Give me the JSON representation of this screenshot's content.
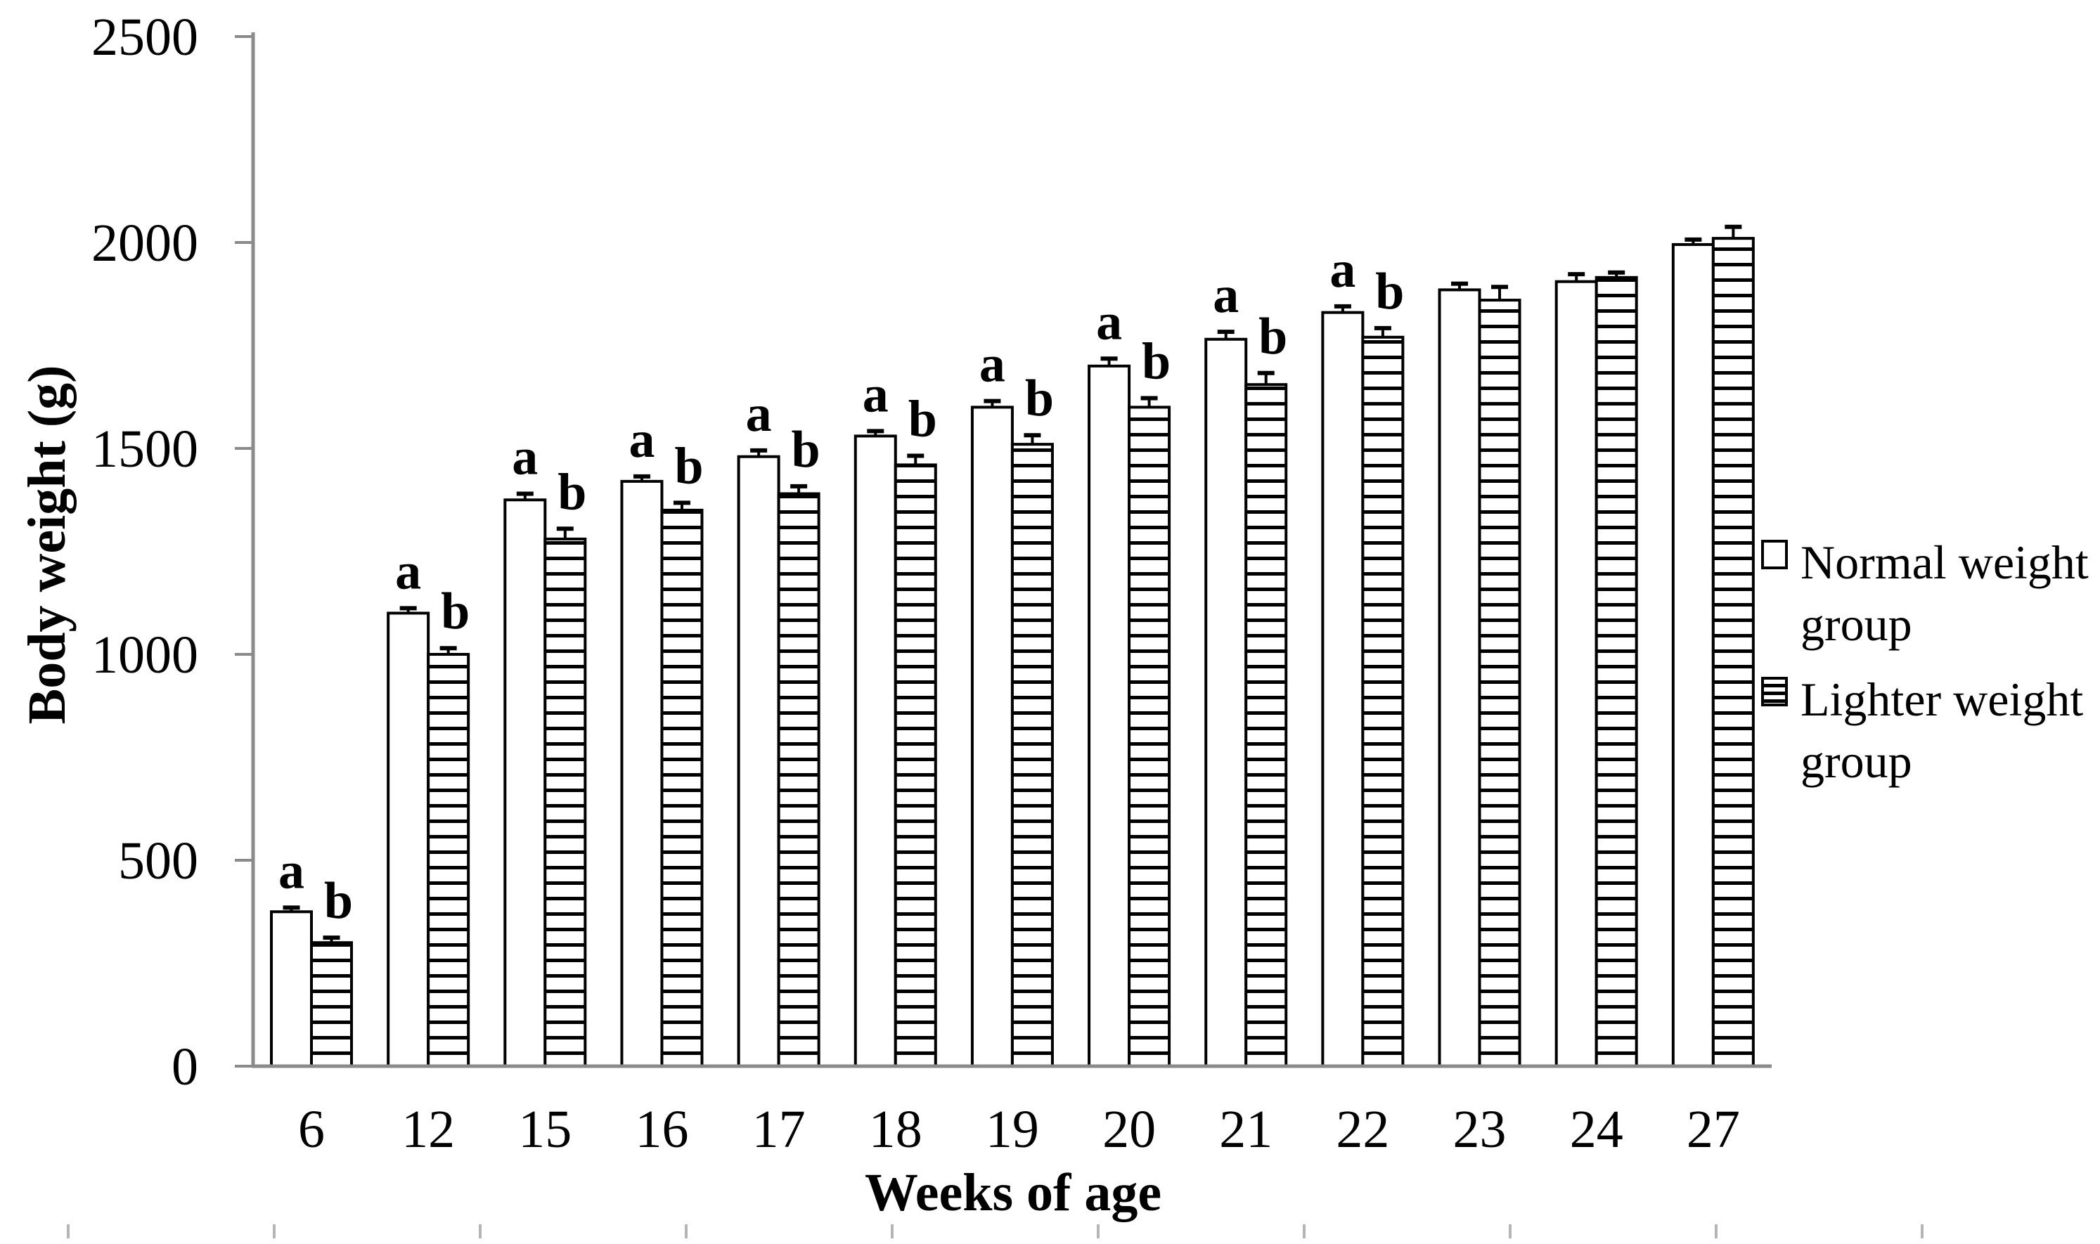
{
  "colors": {
    "background": "#ffffff",
    "axis": "#8a8a8a",
    "minor_mark": "#b4b4b4",
    "bar_fill": "#ffffff",
    "bar_stroke": "#000000",
    "text": "#000000"
  },
  "chart_data": {
    "type": "bar",
    "title": "",
    "xlabel": "Weeks of age",
    "ylabel": "Body weight (g)",
    "categories": [
      "6",
      "12",
      "15",
      "16",
      "17",
      "18",
      "19",
      "20",
      "21",
      "22",
      "23",
      "24",
      "27"
    ],
    "series": [
      {
        "name": "Normal weight group",
        "pattern": "plain",
        "values": [
          375,
          1100,
          1375,
          1420,
          1480,
          1530,
          1600,
          1700,
          1765,
          1830,
          1885,
          1905,
          1995
        ],
        "errors": [
          10,
          12,
          15,
          12,
          15,
          12,
          15,
          18,
          18,
          15,
          15,
          18,
          12
        ],
        "letters": [
          "a",
          "a",
          "a",
          "a",
          "a",
          "a",
          "a",
          "a",
          "a",
          "a",
          "",
          "",
          ""
        ]
      },
      {
        "name": "Lighter weight group",
        "pattern": "hstripes",
        "values": [
          300,
          1000,
          1280,
          1350,
          1390,
          1460,
          1510,
          1600,
          1655,
          1770,
          1860,
          1915,
          2010
        ],
        "errors": [
          12,
          15,
          25,
          18,
          18,
          22,
          22,
          22,
          28,
          22,
          32,
          12,
          28
        ],
        "letters": [
          "b",
          "b",
          "b",
          "b",
          "b",
          "b",
          "b",
          "b",
          "b",
          "b",
          "",
          "",
          ""
        ]
      }
    ],
    "ylim": [
      0,
      2500
    ],
    "ytick_step": 500,
    "yticks": [
      "0",
      "500",
      "1000",
      "1500",
      "2000",
      "2500"
    ],
    "grid": false,
    "legend_position": "right",
    "error_bars": "upper",
    "bar_outline": true
  }
}
